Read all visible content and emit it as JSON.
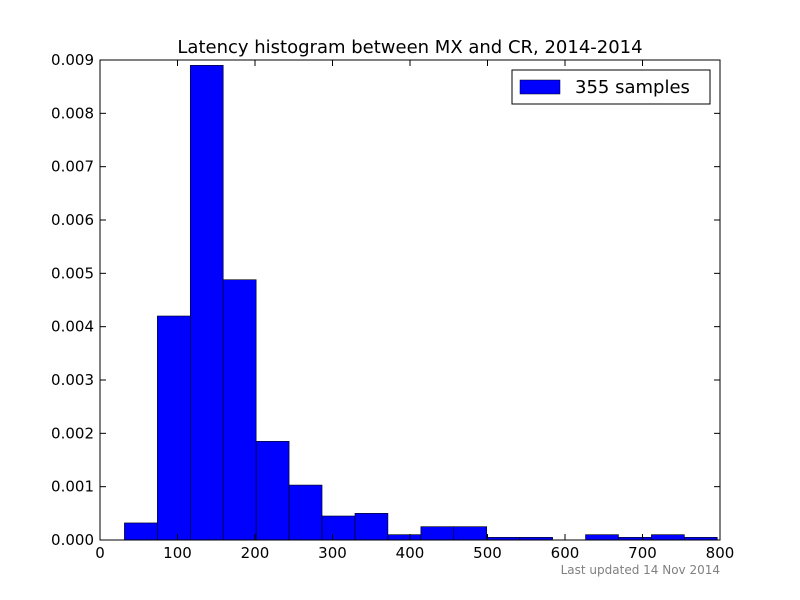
{
  "chart_data": {
    "type": "bar",
    "title": "Latency histogram between MX and CR, 2014-2014",
    "xlabel": "",
    "ylabel": "",
    "xlim": [
      0,
      800
    ],
    "ylim": [
      0,
      0.009
    ],
    "x_ticks": [
      0,
      100,
      200,
      300,
      400,
      500,
      600,
      700,
      800
    ],
    "x_tick_labels": [
      "0",
      "100",
      "200",
      "300",
      "400",
      "500",
      "600",
      "700",
      "800"
    ],
    "y_ticks": [
      0,
      0.001,
      0.002,
      0.003,
      0.004,
      0.005,
      0.006,
      0.007,
      0.008,
      0.009
    ],
    "y_tick_labels": [
      "0.000",
      "0.001",
      "0.002",
      "0.003",
      "0.004",
      "0.005",
      "0.006",
      "0.007",
      "0.008",
      "0.009"
    ],
    "grid": false,
    "legend": {
      "placement": "top-right",
      "entries": [
        "355 samples"
      ]
    },
    "series": [
      {
        "name": "355 samples",
        "color": "#0000ff",
        "bins": [
          {
            "x0": 31.5,
            "x1": 74.0,
            "value": 0.00032
          },
          {
            "x0": 74.0,
            "x1": 116.5,
            "value": 0.0042
          },
          {
            "x0": 116.5,
            "x1": 159.0,
            "value": 0.0089
          },
          {
            "x0": 159.0,
            "x1": 201.5,
            "value": 0.00488
          },
          {
            "x0": 201.5,
            "x1": 244.0,
            "value": 0.00185
          },
          {
            "x0": 244.0,
            "x1": 286.5,
            "value": 0.00103
          },
          {
            "x0": 286.5,
            "x1": 329.0,
            "value": 0.00045
          },
          {
            "x0": 329.0,
            "x1": 371.5,
            "value": 0.0005
          },
          {
            "x0": 371.5,
            "x1": 414.0,
            "value": 0.0001
          },
          {
            "x0": 414.0,
            "x1": 456.5,
            "value": 0.00025
          },
          {
            "x0": 456.5,
            "x1": 499.0,
            "value": 0.00025
          },
          {
            "x0": 499.0,
            "x1": 541.5,
            "value": 5e-05
          },
          {
            "x0": 541.5,
            "x1": 584.0,
            "value": 5e-05
          },
          {
            "x0": 584.0,
            "x1": 626.5,
            "value": 0
          },
          {
            "x0": 626.5,
            "x1": 669.0,
            "value": 0.0001
          },
          {
            "x0": 669.0,
            "x1": 711.5,
            "value": 5e-05
          },
          {
            "x0": 711.5,
            "x1": 754.0,
            "value": 0.0001
          },
          {
            "x0": 754.0,
            "x1": 796.5,
            "value": 5e-05
          }
        ]
      }
    ],
    "footer": "Last updated 14 Nov 2014"
  }
}
